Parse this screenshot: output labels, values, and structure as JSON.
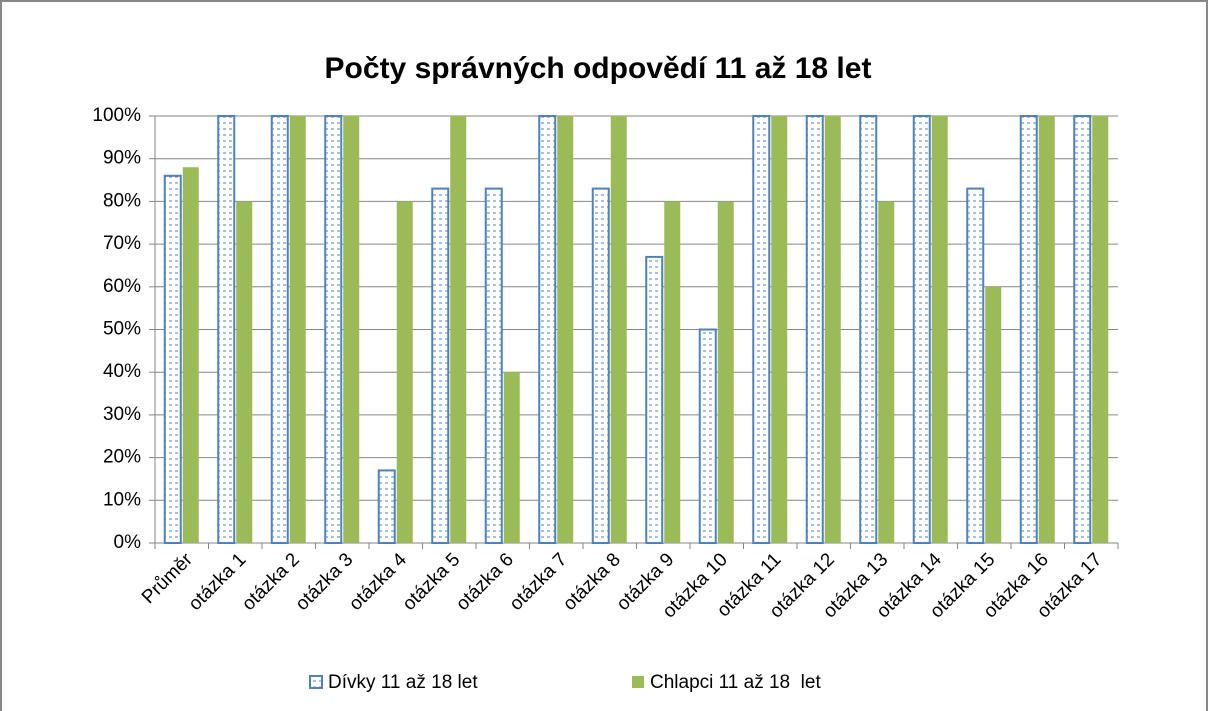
{
  "chart_data": {
    "type": "bar",
    "title": "Počty správných odpovědí 11 až 18 let",
    "categories": [
      "Průměr",
      "otázka 1",
      "otázka 2",
      "otázka 3",
      "otázka 4",
      "otázka 5",
      "otázka 6",
      "otázka 7",
      "otázka 8",
      "otázka 9",
      "otázka 10",
      "otázka 11",
      "otázka 12",
      "otázka 13",
      "otázka 14",
      "otázka 15",
      "otázka 16",
      "otázka 17"
    ],
    "series": [
      {
        "name": "Dívky 11 až 18 let",
        "color": "#4f81bd",
        "values": [
          86,
          100,
          100,
          100,
          17,
          83,
          83,
          100,
          83,
          67,
          50,
          100,
          100,
          100,
          100,
          83,
          100,
          100
        ]
      },
      {
        "name": "Chlapci 11 až 18  let",
        "color": "#9bbb59",
        "values": [
          88,
          80,
          100,
          100,
          80,
          100,
          40,
          100,
          100,
          80,
          80,
          100,
          100,
          80,
          100,
          60,
          100,
          100
        ]
      }
    ],
    "ylim": [
      0,
      100
    ],
    "yticks": [
      {
        "value": 0,
        "label": "0%"
      },
      {
        "value": 10,
        "label": "10%"
      },
      {
        "value": 20,
        "label": "20%"
      },
      {
        "value": 30,
        "label": "30%"
      },
      {
        "value": 40,
        "label": "40%"
      },
      {
        "value": 50,
        "label": "50%"
      },
      {
        "value": 60,
        "label": "60%"
      },
      {
        "value": 70,
        "label": "70%"
      },
      {
        "value": 80,
        "label": "80%"
      },
      {
        "value": 90,
        "label": "90%"
      },
      {
        "value": 100,
        "label": "100%"
      }
    ],
    "grid": true,
    "legend": "bottom"
  }
}
